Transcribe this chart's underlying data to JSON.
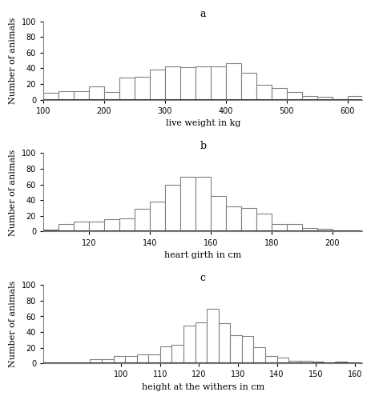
{
  "panel_a": {
    "label": "a",
    "xlabel": "live weight in kg",
    "ylabel": "Number of animals",
    "bin_edges": [
      100,
      125,
      150,
      175,
      200,
      225,
      250,
      275,
      300,
      325,
      350,
      375,
      400,
      425,
      450,
      475,
      500,
      525,
      550,
      575,
      600,
      625
    ],
    "counts": [
      9,
      11,
      11,
      17,
      10,
      28,
      29,
      38,
      43,
      42,
      43,
      43,
      47,
      34,
      19,
      15,
      10,
      5,
      4,
      1,
      5
    ],
    "xlim": [
      100,
      625
    ],
    "ylim": [
      0,
      100
    ],
    "yticks": [
      0,
      20,
      40,
      60,
      80,
      100
    ],
    "xticks": [
      100,
      200,
      300,
      400,
      500,
      600
    ]
  },
  "panel_b": {
    "label": "b",
    "xlabel": "heart girth in cm",
    "ylabel": "Number of animals",
    "bin_edges": [
      105,
      110,
      115,
      120,
      125,
      130,
      135,
      140,
      145,
      150,
      155,
      160,
      165,
      170,
      175,
      180,
      185,
      190,
      195,
      200,
      205,
      210
    ],
    "counts": [
      3,
      10,
      13,
      13,
      16,
      17,
      29,
      38,
      60,
      70,
      70,
      45,
      32,
      30,
      23,
      10,
      10,
      5,
      4,
      1,
      1
    ],
    "xlim": [
      105,
      210
    ],
    "ylim": [
      0,
      100
    ],
    "yticks": [
      0,
      20,
      40,
      60,
      80,
      100
    ],
    "xticks": [
      120,
      140,
      160,
      180,
      200
    ]
  },
  "panel_c": {
    "label": "c",
    "xlabel": "height at the withers in cm",
    "ylabel": "Number of animals",
    "bin_edges": [
      80,
      83,
      86,
      89,
      92,
      95,
      98,
      101,
      104,
      107,
      110,
      113,
      116,
      119,
      122,
      125,
      128,
      131,
      134,
      137,
      140,
      143,
      146,
      149,
      152,
      155,
      158,
      161
    ],
    "counts": [
      0,
      0,
      0,
      0,
      5,
      5,
      10,
      10,
      12,
      12,
      22,
      24,
      48,
      52,
      70,
      51,
      36,
      35,
      21,
      10,
      7,
      3,
      3,
      2,
      0,
      2,
      0
    ],
    "xlim": [
      80,
      162
    ],
    "ylim": [
      0,
      100
    ],
    "yticks": [
      0,
      20,
      40,
      60,
      80,
      100
    ],
    "xticks": [
      100,
      110,
      120,
      130,
      140,
      150,
      160
    ]
  },
  "bar_color": "#ffffff",
  "bar_edgecolor": "#808080",
  "bar_linewidth": 0.8,
  "background_color": "#ffffff",
  "tick_fontsize": 7,
  "label_fontsize": 8,
  "panel_label_fontsize": 9
}
